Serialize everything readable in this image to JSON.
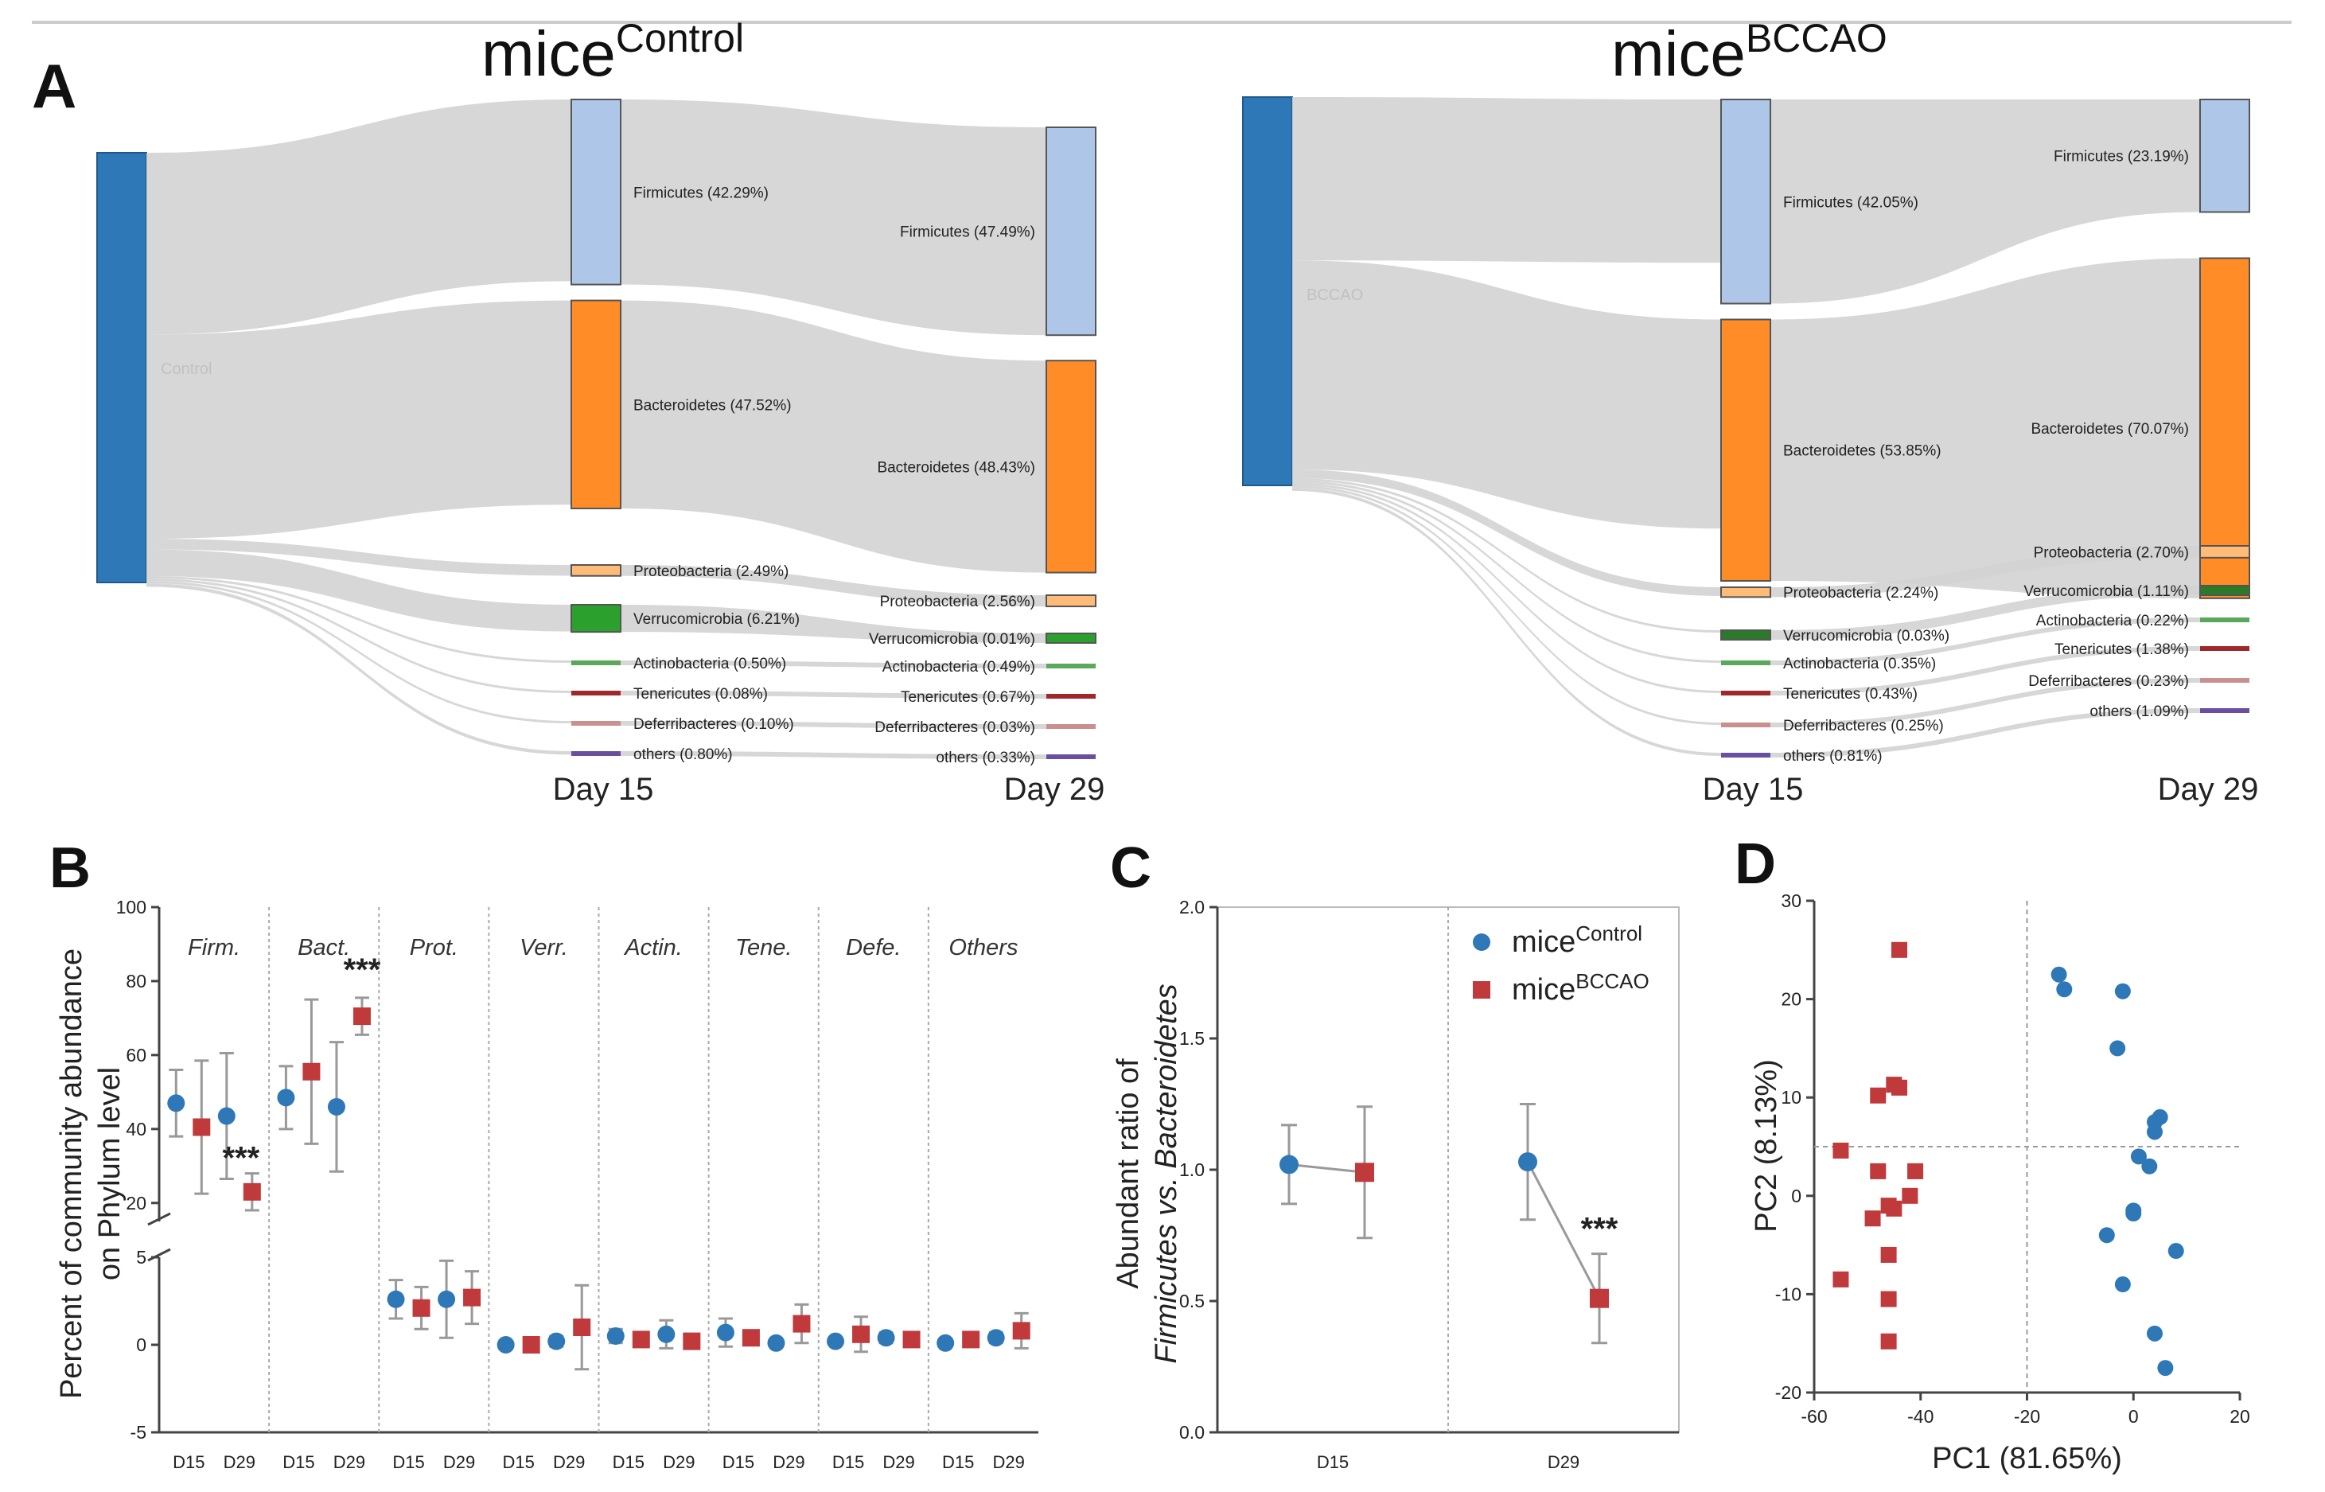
{
  "figure": {
    "colors": {
      "control": "#2e78b7",
      "bccao": "#c0393b",
      "axis": "#444444",
      "grid": "#999999",
      "flow": "#d3d3d3"
    },
    "panel_letters": [
      "A",
      "B",
      "C",
      "D"
    ]
  },
  "chart_data": [
    {
      "panel": "A1",
      "type": "sankey",
      "title_main": "mice",
      "title_sup": "Control",
      "source_label": "Control",
      "source_color": "#2e78b7",
      "day_labels": [
        "Day 15",
        "Day 29"
      ],
      "nodes": [
        {
          "name": "Firmicutes",
          "color": "#aec7e8",
          "d15": 42.29,
          "d29": 47.49
        },
        {
          "name": "Bacteroidetes",
          "color": "#ff8c26",
          "d15": 47.52,
          "d29": 48.43
        },
        {
          "name": "Proteobacteria",
          "color": "#ffbb78",
          "d15": 2.49,
          "d29": 2.56
        },
        {
          "name": "Verrucomicrobia",
          "color": "#2ca02c",
          "d15": 6.21,
          "d29": 0.01
        },
        {
          "name": "Actinobacteria",
          "color": "#5aa85a",
          "d15": 0.5,
          "d29": 0.49
        },
        {
          "name": "Tenericutes",
          "color": "#a0282a",
          "d15": 0.08,
          "d29": 0.67
        },
        {
          "name": "Deferribacteres",
          "color": "#c9908f",
          "d15": 0.1,
          "d29": 0.03
        },
        {
          "name": "others",
          "color": "#6a4fa0",
          "d15": 0.8,
          "d29": 0.33
        }
      ],
      "labels_d15": [
        "Firmicutes (42.29%)",
        "Bacteroidetes (47.52%)",
        "Proteobacteria (2.49%)",
        "Verrucomicrobia (6.21%)",
        "Actinobacteria (0.50%)",
        "Tenericutes (0.08%)",
        "Deferribacteres (0.10%)",
        "others (0.80%)"
      ],
      "labels_d29": [
        "Firmicutes (47.49%)",
        "Bacteroidetes (48.43%)",
        "Proteobacteria (2.56%)",
        "Verrucomicrobia (0.01%)",
        "Actinobacteria (0.49%)",
        "Tenericutes (0.67%)",
        "Deferribacteres (0.03%)",
        "others (0.33%)"
      ]
    },
    {
      "panel": "A2",
      "type": "sankey",
      "title_main": "mice",
      "title_sup": "BCCAO",
      "source_label": "BCCAO",
      "source_color": "#2e78b7",
      "day_labels": [
        "Day 15",
        "Day 29"
      ],
      "nodes": [
        {
          "name": "Firmicutes",
          "color": "#aec7e8",
          "d15": 42.05,
          "d29": 23.19
        },
        {
          "name": "Bacteroidetes",
          "color": "#ff8c26",
          "d15": 53.85,
          "d29": 70.07
        },
        {
          "name": "Proteobacteria",
          "color": "#ffbb78",
          "d15": 2.24,
          "d29": 2.7
        },
        {
          "name": "Verrucomicrobia",
          "color": "#2a7a2a",
          "d15": 0.03,
          "d29": 1.11
        },
        {
          "name": "Actinobacteria",
          "color": "#5aa85a",
          "d15": 0.35,
          "d29": 0.22
        },
        {
          "name": "Tenericutes",
          "color": "#a0282a",
          "d15": 0.43,
          "d29": 1.38
        },
        {
          "name": "Deferribacteres",
          "color": "#c9908f",
          "d15": 0.25,
          "d29": 0.23
        },
        {
          "name": "others",
          "color": "#6a4fa0",
          "d15": 0.81,
          "d29": 1.09
        }
      ],
      "labels_d15": [
        "Firmicutes (42.05%)",
        "Bacteroidetes (53.85%)",
        "Proteobacteria (2.24%)",
        "Verrucomicrobia (0.03%)",
        "Actinobacteria (0.35%)",
        "Tenericutes (0.43%)",
        "Deferribacteres (0.25%)",
        "others (0.81%)"
      ],
      "labels_d29": [
        "Firmicutes (23.19%)",
        "Bacteroidetes (70.07%)",
        "Proteobacteria (2.70%)",
        "Verrucomicrobia (1.11%)",
        "Actinobacteria (0.22%)",
        "Tenericutes (1.38%)",
        "Deferribacteres (0.23%)",
        "others (1.09%)"
      ]
    },
    {
      "panel": "B",
      "type": "scatter",
      "ylabel_line1": "Percent of community abundance",
      "ylabel_line2": "on Phylum level",
      "y_break": {
        "lower": [
          -5,
          5
        ],
        "upper": [
          15,
          100
        ]
      },
      "yticks_lower": [
        -5,
        0,
        5
      ],
      "yticks_upper": [
        20,
        40,
        60,
        80,
        100
      ],
      "groups": [
        "Firm.",
        "Bact.",
        "Prot.",
        "Verr.",
        "Actin.",
        "Tene.",
        "Defe.",
        "Others"
      ],
      "xticks": [
        "D15",
        "D29"
      ],
      "series": [
        {
          "name": "Control",
          "color": "#2e78b7",
          "marker": "circle",
          "mean": [
            [
              47,
              43.5
            ],
            [
              48.5,
              46
            ],
            [
              2.6,
              2.6
            ],
            [
              0,
              0.2
            ],
            [
              0.5,
              0.6
            ],
            [
              0.7,
              0.1
            ],
            [
              0.2,
              0.4
            ],
            [
              0.1,
              0.4
            ]
          ],
          "sd": [
            [
              9,
              17
            ],
            [
              8.5,
              17.5
            ],
            [
              1.1,
              2.2
            ],
            [
              0.2,
              0.3
            ],
            [
              0.4,
              0.8
            ],
            [
              0.8,
              0.1
            ],
            [
              0.2,
              0.3
            ],
            [
              0.1,
              0.3
            ]
          ]
        },
        {
          "name": "BCCAO",
          "color": "#c0393b",
          "marker": "square",
          "mean": [
            [
              40.5,
              23
            ],
            [
              55.5,
              70.5
            ],
            [
              2.1,
              2.7
            ],
            [
              0,
              1.0
            ],
            [
              0.3,
              0.2
            ],
            [
              0.4,
              1.2
            ],
            [
              0.6,
              0.3
            ],
            [
              0.3,
              0.8
            ]
          ],
          "sd": [
            [
              18,
              5
            ],
            [
              19.5,
              5
            ],
            [
              1.2,
              1.5
            ],
            [
              0.1,
              2.4
            ],
            [
              0.3,
              0.1
            ],
            [
              0.4,
              1.1
            ],
            [
              1.0,
              0.2
            ],
            [
              0.3,
              1.0
            ]
          ]
        }
      ],
      "annotations": [
        {
          "group": 0,
          "point": 1,
          "text": "***"
        },
        {
          "group": 1,
          "point": 1,
          "text": "***"
        }
      ]
    },
    {
      "panel": "C",
      "type": "line",
      "ylabel_line1": "Abundant ratio of",
      "ylabel_line2": "Firmicutes vs. Bacteroidetes",
      "ylim": [
        0,
        2
      ],
      "yticks": [
        "0.0",
        "0.5",
        "1.0",
        "1.5",
        "2.0"
      ],
      "categories": [
        "D15",
        "D29"
      ],
      "series": [
        {
          "name": "mice",
          "sup": "Control",
          "color": "#2e78b7",
          "marker": "circle",
          "values": [
            1.02,
            1.03
          ],
          "sd": [
            0.15,
            0.22
          ]
        },
        {
          "name": "mice",
          "sup": "BCCAO",
          "color": "#c0393b",
          "marker": "square",
          "values": [
            0.99,
            0.51
          ],
          "sd": [
            0.25,
            0.17
          ]
        }
      ],
      "annotations": [
        {
          "category": 1,
          "text": "***"
        }
      ]
    },
    {
      "panel": "D",
      "type": "scatter",
      "xlabel": "PC1 (81.65%)",
      "ylabel": "PC2 (8.13%)",
      "xlim": [
        -60,
        20
      ],
      "ylim": [
        -20,
        30
      ],
      "xticks": [
        -60,
        -40,
        -20,
        0,
        20
      ],
      "yticks": [
        -20,
        -10,
        0,
        10,
        20,
        30
      ],
      "reference_lines": {
        "x": -20,
        "y": 5
      },
      "series": [
        {
          "name": "Control",
          "color": "#2e78b7",
          "marker": "circle",
          "x": [
            -14,
            -13,
            -2,
            -3,
            5,
            4,
            1,
            3,
            0,
            4,
            0,
            -5,
            -2,
            8,
            4,
            6
          ],
          "y": [
            22.5,
            21,
            20.8,
            15,
            8,
            7.5,
            4,
            3,
            -1.5,
            6.5,
            -1.8,
            -4,
            -9,
            -5.6,
            -14,
            -17.5
          ]
        },
        {
          "name": "BCCAO",
          "color": "#c0393b",
          "marker": "square",
          "x": [
            -44,
            -45,
            -44,
            -48,
            -55,
            -48,
            -41,
            -42,
            -46,
            -45,
            -49,
            -46,
            -55,
            -46,
            -46
          ],
          "y": [
            25,
            11.3,
            11,
            10.2,
            4.6,
            2.5,
            2.5,
            0,
            -1,
            -1.3,
            -2.3,
            -6,
            -8.5,
            -10.5,
            -14.8
          ]
        }
      ]
    }
  ]
}
